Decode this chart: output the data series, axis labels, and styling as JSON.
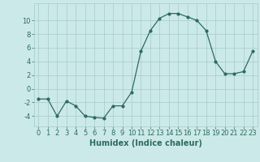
{
  "x": [
    0,
    1,
    2,
    3,
    4,
    5,
    6,
    7,
    8,
    9,
    10,
    11,
    12,
    13,
    14,
    15,
    16,
    17,
    18,
    19,
    20,
    21,
    22,
    23
  ],
  "y": [
    -1.5,
    -1.5,
    -4.0,
    -1.8,
    -2.5,
    -4.0,
    -4.2,
    -4.3,
    -2.5,
    -2.5,
    -0.5,
    5.5,
    8.5,
    10.3,
    11.0,
    11.0,
    10.5,
    10.0,
    8.5,
    4.0,
    2.2,
    2.2,
    2.5,
    5.5
  ],
  "line_color": "#2d6b5e",
  "marker": "o",
  "marker_size": 2,
  "bg_color": "#cce9e9",
  "grid_color": "#aacfcf",
  "xlabel": "Humidex (Indice chaleur)",
  "xlabel_fontsize": 7,
  "tick_fontsize": 6,
  "ylim": [
    -5.5,
    12.5
  ],
  "yticks": [
    -4,
    -2,
    0,
    2,
    4,
    6,
    8,
    10
  ],
  "xlim": [
    -0.5,
    23.5
  ]
}
